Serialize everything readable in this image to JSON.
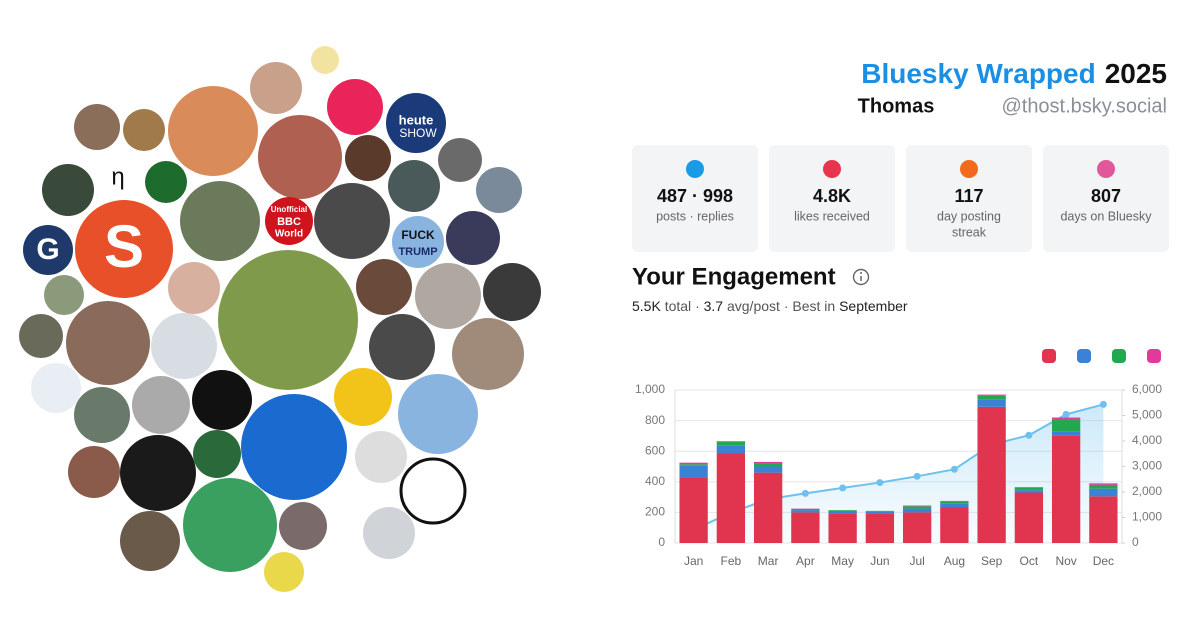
{
  "header": {
    "title": "Bluesky Wrapped",
    "year": "2025",
    "name": "Thomas",
    "handle": "@thost.bsky.social"
  },
  "avatar_texts": {
    "eta": "η",
    "g": "G",
    "s": "S",
    "heute": [
      "heute",
      "SHOW"
    ],
    "bbc": [
      "Unofficial",
      "BBC",
      "World"
    ],
    "sign": [
      "FUCK",
      "TRUMP"
    ]
  },
  "stats": [
    {
      "value": "487 · 998",
      "label": [
        "posts · replies"
      ],
      "color": "#1a9be6"
    },
    {
      "value": "4.8K",
      "label": [
        "likes received"
      ],
      "color": "#e8344f"
    },
    {
      "value": "117",
      "label": [
        "day posting",
        "streak"
      ],
      "color": "#f26b1d"
    },
    {
      "value": "807",
      "label": [
        "days on Bluesky"
      ],
      "color": "#e2569a"
    }
  ],
  "engagement": {
    "title": "Your Engagement",
    "total": "5.5K",
    "total_label": "total",
    "separator": "·",
    "avg": "3.7",
    "avg_label": "avg/post",
    "best_label": "Best in",
    "best_month": "September"
  },
  "chart_data": {
    "type": "bar",
    "stacked": true,
    "grid": true,
    "categories": [
      "Jan",
      "Feb",
      "Mar",
      "Apr",
      "May",
      "Jun",
      "Jul",
      "Aug",
      "Sep",
      "Oct",
      "Nov",
      "Dec"
    ],
    "series": [
      {
        "color": "#e0344f",
        "values": [
          425,
          585,
          460,
          200,
          195,
          195,
          200,
          235,
          890,
          330,
          700,
          305
        ]
      },
      {
        "color": "#3b82d6",
        "values": [
          80,
          50,
          40,
          15,
          15,
          12,
          25,
          25,
          50,
          15,
          30,
          50
        ]
      },
      {
        "color": "#22a94f",
        "values": [
          10,
          25,
          20,
          8,
          5,
          3,
          15,
          12,
          25,
          15,
          80,
          25
        ]
      },
      {
        "color": "#e23a9c",
        "values": [
          10,
          5,
          10,
          2,
          0,
          0,
          5,
          3,
          5,
          5,
          10,
          10
        ]
      },
      {
        "type": "line",
        "axis": "y2",
        "color": "#6ec1ee",
        "values": [
          525,
          1190,
          1720,
          1945,
          2160,
          2370,
          2615,
          2890,
          3860,
          4225,
          5045,
          5435
        ]
      }
    ],
    "ylim": [
      0,
      1000
    ],
    "yticks": [
      0,
      200,
      400,
      600,
      800,
      {
        "value": 1000,
        "label": "1,000"
      }
    ],
    "y2lim": [
      0,
      6000
    ],
    "y2ticks": [
      0,
      {
        "value": 1000,
        "label": "1,000"
      },
      {
        "value": 2000,
        "label": "2,000"
      },
      {
        "value": 3000,
        "label": "3,000"
      },
      {
        "value": 4000,
        "label": "4,000"
      },
      {
        "value": 5000,
        "label": "5,000"
      },
      {
        "value": 6000,
        "label": "6,000"
      }
    ]
  }
}
